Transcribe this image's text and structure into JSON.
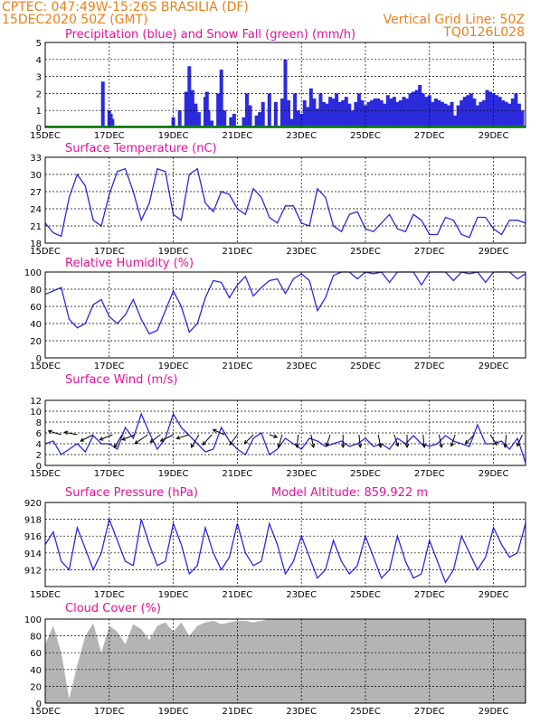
{
  "header": {
    "line1": "CPTEC:   047:49W-15:26S   BRASILIA (DF)",
    "line2": "15DEC2020 50Z (GMT)",
    "right1": "Vertical Grid Line: 50Z",
    "right2": "TQ0126L028"
  },
  "colors": {
    "header": "#e8801a",
    "title": "#e0129a",
    "series": "#2b2bdc",
    "cloud": "#b4b4b4",
    "snow": "#00a000"
  },
  "date_labels": [
    "15DEC",
    "17DEC",
    "19DEC",
    "21DEC",
    "23DEC",
    "25DEC",
    "27DEC",
    "29DEC"
  ],
  "chart_data": [
    {
      "type": "bar",
      "title": "Precipitation (blue) and Snow Fall (green) (mm/h)",
      "ylim": [
        0,
        5
      ],
      "yticks": [
        0,
        1,
        2,
        3,
        4,
        5
      ],
      "x_days": [
        0,
        15
      ],
      "series": [
        {
          "name": "Precipitation",
          "color": "#2b2bdc",
          "x": [
            1.8,
            2.0,
            2.05,
            2.1,
            4.0,
            4.2,
            4.4,
            4.45,
            4.5,
            4.6,
            4.7,
            4.8,
            5.0,
            5.05,
            5.1,
            5.2,
            5.4,
            5.5,
            5.6,
            5.8,
            5.9,
            6.2,
            6.3,
            6.4,
            6.6,
            6.7,
            6.8,
            7.0,
            7.2,
            7.4,
            7.5,
            7.6,
            7.7,
            7.8,
            7.9,
            8.0,
            8.1,
            8.2,
            8.3,
            8.4,
            8.5,
            8.6,
            8.7,
            8.8,
            8.9,
            9.0,
            9.1,
            9.2,
            9.3,
            9.4,
            9.5,
            9.6,
            9.7,
            9.8,
            9.9,
            10.0,
            10.1,
            10.2,
            10.3,
            10.4,
            10.5,
            10.6,
            10.7,
            10.8,
            10.9,
            11.0,
            11.1,
            11.2,
            11.3,
            11.4,
            11.5,
            11.6,
            11.7,
            11.8,
            11.9,
            12.0,
            12.1,
            12.2,
            12.3,
            12.4,
            12.5,
            12.6,
            12.7,
            12.8,
            12.9,
            13.0,
            13.1,
            13.2,
            13.3,
            13.4,
            13.5,
            13.6,
            13.7,
            13.8,
            13.9,
            14.0,
            14.1,
            14.2,
            14.3,
            14.4,
            14.5,
            14.6,
            14.7,
            14.8,
            14.9
          ],
          "values": [
            2.7,
            1.0,
            0.8,
            0.5,
            0.6,
            1.0,
            2.1,
            1.7,
            3.6,
            2.2,
            1.4,
            0.9,
            1.8,
            2.1,
            1.0,
            0.4,
            2.0,
            3.4,
            1.0,
            0.6,
            0.8,
            0.6,
            2.0,
            1.3,
            0.7,
            0.9,
            1.5,
            2.0,
            1.5,
            1.7,
            4.0,
            1.6,
            0.5,
            2.0,
            1.0,
            0.8,
            1.6,
            1.2,
            2.3,
            1.7,
            1.1,
            2.0,
            1.5,
            1.4,
            1.8,
            1.7,
            2.0,
            1.5,
            1.6,
            1.8,
            1.4,
            1.0,
            1.5,
            2.0,
            1.6,
            1.3,
            1.5,
            1.6,
            1.7,
            1.7,
            1.6,
            1.4,
            1.9,
            1.7,
            1.8,
            1.5,
            1.6,
            1.8,
            1.7,
            2.0,
            2.1,
            2.2,
            2.5,
            2.0,
            1.8,
            1.9,
            1.5,
            1.7,
            1.6,
            1.5,
            1.4,
            1.3,
            1.5,
            0.7,
            1.3,
            1.6,
            1.8,
            1.9,
            2.0,
            1.7,
            1.3,
            1.5,
            1.6,
            2.2,
            2.1,
            2.0,
            1.9,
            1.8,
            1.6,
            1.5,
            1.4,
            1.7,
            2.0,
            1.4,
            1.0
          ]
        }
      ]
    },
    {
      "type": "line",
      "title": "Surface Temperature (nC)",
      "ylim": [
        18,
        33
      ],
      "yticks": [
        18,
        21,
        24,
        27,
        30,
        33
      ],
      "series": [
        {
          "name": "",
          "color": "#2b2bdc",
          "x": [
            0,
            0.25,
            0.5,
            0.75,
            1.0,
            1.25,
            1.5,
            1.75,
            2.0,
            2.25,
            2.5,
            2.75,
            3.0,
            3.25,
            3.5,
            3.75,
            4.0,
            4.25,
            4.5,
            4.75,
            5.0,
            5.25,
            5.5,
            5.75,
            6.0,
            6.25,
            6.5,
            6.75,
            7.0,
            7.25,
            7.5,
            7.75,
            8.0,
            8.25,
            8.5,
            8.75,
            9.0,
            9.25,
            9.5,
            9.75,
            10.0,
            10.25,
            10.5,
            10.75,
            11.0,
            11.25,
            11.5,
            11.75,
            12.0,
            12.25,
            12.5,
            12.75,
            13.0,
            13.25,
            13.5,
            13.75,
            14.0,
            14.25,
            14.5,
            14.75,
            15.0
          ],
          "values": [
            21.5,
            19.8,
            19.2,
            26.0,
            30.0,
            28.0,
            22.0,
            21.0,
            26.5,
            30.5,
            31.0,
            27.0,
            22.0,
            25.0,
            31.0,
            30.5,
            23.0,
            22.0,
            30.0,
            31.0,
            25.0,
            23.5,
            27.0,
            26.5,
            24.0,
            23.0,
            27.5,
            26.0,
            22.5,
            21.5,
            24.5,
            24.5,
            21.5,
            21.0,
            27.5,
            26.0,
            21.0,
            20.0,
            23.0,
            23.5,
            20.5,
            20.0,
            21.5,
            23.0,
            20.5,
            20.0,
            23.0,
            22.0,
            19.5,
            19.5,
            22.5,
            22.0,
            19.5,
            19.0,
            22.5,
            22.5,
            20.5,
            19.5,
            22.0,
            22.0,
            21.5
          ]
        }
      ]
    },
    {
      "type": "line",
      "title": "Relative Humidity (%)",
      "ylim": [
        0,
        100
      ],
      "yticks": [
        0,
        20,
        40,
        60,
        80,
        100
      ],
      "series": [
        {
          "name": "",
          "color": "#2b2bdc",
          "x": [
            0,
            0.25,
            0.5,
            0.75,
            1.0,
            1.25,
            1.5,
            1.75,
            2.0,
            2.25,
            2.5,
            2.75,
            3.0,
            3.25,
            3.5,
            3.75,
            4.0,
            4.25,
            4.5,
            4.75,
            5.0,
            5.25,
            5.5,
            5.75,
            6.0,
            6.25,
            6.5,
            6.75,
            7.0,
            7.25,
            7.5,
            7.75,
            8.0,
            8.25,
            8.5,
            8.75,
            9.0,
            9.25,
            9.5,
            9.75,
            10.0,
            10.25,
            10.5,
            10.75,
            11.0,
            11.25,
            11.5,
            11.75,
            12.0,
            12.25,
            12.5,
            12.75,
            13.0,
            13.25,
            13.5,
            13.75,
            14.0,
            14.25,
            14.5,
            14.75,
            15.0
          ],
          "values": [
            74,
            78,
            82,
            45,
            35,
            40,
            62,
            68,
            48,
            40,
            50,
            68,
            45,
            28,
            32,
            55,
            78,
            60,
            30,
            40,
            70,
            90,
            88,
            70,
            85,
            95,
            72,
            82,
            90,
            92,
            75,
            92,
            98,
            90,
            55,
            70,
            96,
            100,
            100,
            92,
            100,
            98,
            100,
            88,
            100,
            100,
            100,
            85,
            100,
            100,
            100,
            90,
            100,
            98,
            100,
            88,
            100,
            100,
            100,
            92,
            98
          ]
        }
      ]
    },
    {
      "type": "line",
      "title": "Surface Wind (m/s)",
      "ylim": [
        0,
        12
      ],
      "yticks": [
        0,
        2,
        4,
        6,
        8,
        10,
        12
      ],
      "series": [
        {
          "name": "",
          "color": "#2b2bdc",
          "x": [
            0,
            0.25,
            0.5,
            0.75,
            1.0,
            1.25,
            1.5,
            1.75,
            2.0,
            2.25,
            2.5,
            2.75,
            3.0,
            3.25,
            3.5,
            3.75,
            4.0,
            4.25,
            4.5,
            4.75,
            5.0,
            5.25,
            5.5,
            5.75,
            6.0,
            6.25,
            6.5,
            6.75,
            7.0,
            7.25,
            7.5,
            7.75,
            8.0,
            8.25,
            8.5,
            8.75,
            9.0,
            9.25,
            9.5,
            9.75,
            10.0,
            10.25,
            10.5,
            10.75,
            11.0,
            11.25,
            11.5,
            11.75,
            12.0,
            12.25,
            12.5,
            12.75,
            13.0,
            13.25,
            13.5,
            13.75,
            14.0,
            14.25,
            14.5,
            14.75,
            15.0
          ],
          "values": [
            4.0,
            4.5,
            2.0,
            3.0,
            4.0,
            2.5,
            5.5,
            4.0,
            4.0,
            3.0,
            7.0,
            5.0,
            9.5,
            6.0,
            3.0,
            5.0,
            9.5,
            7.0,
            5.5,
            4.0,
            2.5,
            3.0,
            7.0,
            4.5,
            3.0,
            2.0,
            5.0,
            6.0,
            2.0,
            3.0,
            5.0,
            4.0,
            3.0,
            5.0,
            4.5,
            3.5,
            4.0,
            4.5,
            3.5,
            4.0,
            5.0,
            3.5,
            4.0,
            3.0,
            5.0,
            4.0,
            5.5,
            4.0,
            3.5,
            4.0,
            5.5,
            4.5,
            4.0,
            3.5,
            7.5,
            4.0,
            4.0,
            4.5,
            3.0,
            5.0,
            0.5
          ]
        }
      ],
      "barbs": [
        {
          "x": 0.5,
          "dx": -1,
          "dy": -0.3
        },
        {
          "x": 1.0,
          "dx": -1,
          "dy": -0.2
        },
        {
          "x": 1.5,
          "dx": -1,
          "dy": 0.5
        },
        {
          "x": 2.1,
          "dx": -1,
          "dy": 0.4
        },
        {
          "x": 2.4,
          "dx": -0.6,
          "dy": 1
        },
        {
          "x": 2.8,
          "dx": -1,
          "dy": 0.4
        },
        {
          "x": 3.2,
          "dx": -1,
          "dy": 0.7
        },
        {
          "x": 3.6,
          "dx": -0.8,
          "dy": 0.6
        },
        {
          "x": 4.0,
          "dx": -1,
          "dy": 0.5
        },
        {
          "x": 4.5,
          "dx": -1,
          "dy": 0.3
        },
        {
          "x": 4.8,
          "dx": -0.6,
          "dy": 1
        },
        {
          "x": 5.2,
          "dx": -0.7,
          "dy": 0.8
        },
        {
          "x": 5.6,
          "dx": -0.9,
          "dy": -0.4
        },
        {
          "x": 6.0,
          "dx": -0.6,
          "dy": 0.8
        },
        {
          "x": 6.5,
          "dx": -0.7,
          "dy": 0.7
        },
        {
          "x": 7.0,
          "dx": 0.6,
          "dy": 0.2
        },
        {
          "x": 7.4,
          "dx": -0.3,
          "dy": 1
        },
        {
          "x": 7.9,
          "dx": -0.1,
          "dy": 1
        },
        {
          "x": 8.3,
          "dx": 0.2,
          "dy": 1
        },
        {
          "x": 8.9,
          "dx": -0.3,
          "dy": 0.9
        },
        {
          "x": 9.3,
          "dx": 0.0,
          "dy": 1
        },
        {
          "x": 9.8,
          "dx": 0.1,
          "dy": 1
        },
        {
          "x": 10.4,
          "dx": 0.2,
          "dy": 1
        },
        {
          "x": 10.9,
          "dx": 0.3,
          "dy": 0.9
        },
        {
          "x": 11.3,
          "dx": 0.0,
          "dy": 1
        },
        {
          "x": 11.8,
          "dx": 0.1,
          "dy": 1
        },
        {
          "x": 12.3,
          "dx": 0.2,
          "dy": 1
        },
        {
          "x": 12.8,
          "dx": -0.3,
          "dy": 0.9
        },
        {
          "x": 13.4,
          "dx": -0.7,
          "dy": 0.7
        },
        {
          "x": 13.9,
          "dx": 0.5,
          "dy": 0.8
        },
        {
          "x": 14.4,
          "dx": -0.1,
          "dy": 1
        },
        {
          "x": 14.9,
          "dx": -0.4,
          "dy": 0.9
        }
      ]
    },
    {
      "type": "line",
      "title": "Surface Pressure (hPa)",
      "annotation": "Model Altitude: 859.922  m",
      "ylim": [
        910,
        920
      ],
      "yticks": [
        912,
        914,
        916,
        918,
        920
      ],
      "series": [
        {
          "name": "",
          "color": "#2b2bdc",
          "x": [
            0,
            0.25,
            0.5,
            0.75,
            1.0,
            1.25,
            1.5,
            1.75,
            2.0,
            2.25,
            2.5,
            2.75,
            3.0,
            3.25,
            3.5,
            3.75,
            4.0,
            4.25,
            4.5,
            4.75,
            5.0,
            5.25,
            5.5,
            5.75,
            6.0,
            6.25,
            6.5,
            6.75,
            7.0,
            7.25,
            7.5,
            7.75,
            8.0,
            8.25,
            8.5,
            8.75,
            9.0,
            9.25,
            9.5,
            9.75,
            10.0,
            10.25,
            10.5,
            10.75,
            11.0,
            11.25,
            11.5,
            11.75,
            12.0,
            12.25,
            12.5,
            12.75,
            13.0,
            13.25,
            13.5,
            13.75,
            14.0,
            14.25,
            14.5,
            14.75,
            15.0
          ],
          "values": [
            915.0,
            916.5,
            913.0,
            912.0,
            917.0,
            914.5,
            912.0,
            914.0,
            918.0,
            915.5,
            913.0,
            912.5,
            918.0,
            915.0,
            912.5,
            913.0,
            917.5,
            915.0,
            911.5,
            912.5,
            917.0,
            914.0,
            912.0,
            913.5,
            917.5,
            914.0,
            912.5,
            913.0,
            917.5,
            915.0,
            911.5,
            913.0,
            916.0,
            913.5,
            911.0,
            912.0,
            915.5,
            913.0,
            911.5,
            912.5,
            916.0,
            913.5,
            911.0,
            912.0,
            916.0,
            913.0,
            911.0,
            911.5,
            915.5,
            913.0,
            910.5,
            912.0,
            916.0,
            914.0,
            912.0,
            913.5,
            917.0,
            915.0,
            913.5,
            914.0,
            917.5
          ]
        }
      ]
    },
    {
      "type": "area",
      "title": "Cloud Cover (%)",
      "ylim": [
        0,
        100
      ],
      "yticks": [
        0,
        20,
        40,
        60,
        80,
        100
      ],
      "series": [
        {
          "name": "",
          "color": "#b4b4b4",
          "x": [
            0,
            0.25,
            0.5,
            0.75,
            1.0,
            1.25,
            1.5,
            1.75,
            2.0,
            2.25,
            2.5,
            2.75,
            3.0,
            3.25,
            3.5,
            3.75,
            4.0,
            4.25,
            4.5,
            4.75,
            5.0,
            5.25,
            5.5,
            5.75,
            6.0,
            6.25,
            6.5,
            6.75,
            7.0,
            7.25,
            7.5,
            7.75,
            8.0,
            8.25,
            8.5,
            8.75,
            9.0,
            9.25,
            9.5,
            9.75,
            10.0,
            10.25,
            10.5,
            10.75,
            11.0,
            11.25,
            11.5,
            11.75,
            12.0,
            12.25,
            12.5,
            12.75,
            13.0,
            13.25,
            13.5,
            13.75,
            14.0,
            14.25,
            14.5,
            14.75,
            15.0
          ],
          "values": [
            70,
            92,
            60,
            5,
            45,
            80,
            95,
            60,
            92,
            85,
            70,
            94,
            88,
            75,
            92,
            96,
            85,
            96,
            80,
            92,
            96,
            98,
            94,
            96,
            98,
            98,
            96,
            98,
            100,
            100,
            100,
            100,
            100,
            100,
            100,
            100,
            100,
            100,
            100,
            100,
            100,
            100,
            100,
            100,
            100,
            100,
            100,
            100,
            100,
            100,
            100,
            100,
            100,
            100,
            100,
            100,
            100,
            100,
            100,
            100,
            100
          ]
        }
      ]
    }
  ]
}
